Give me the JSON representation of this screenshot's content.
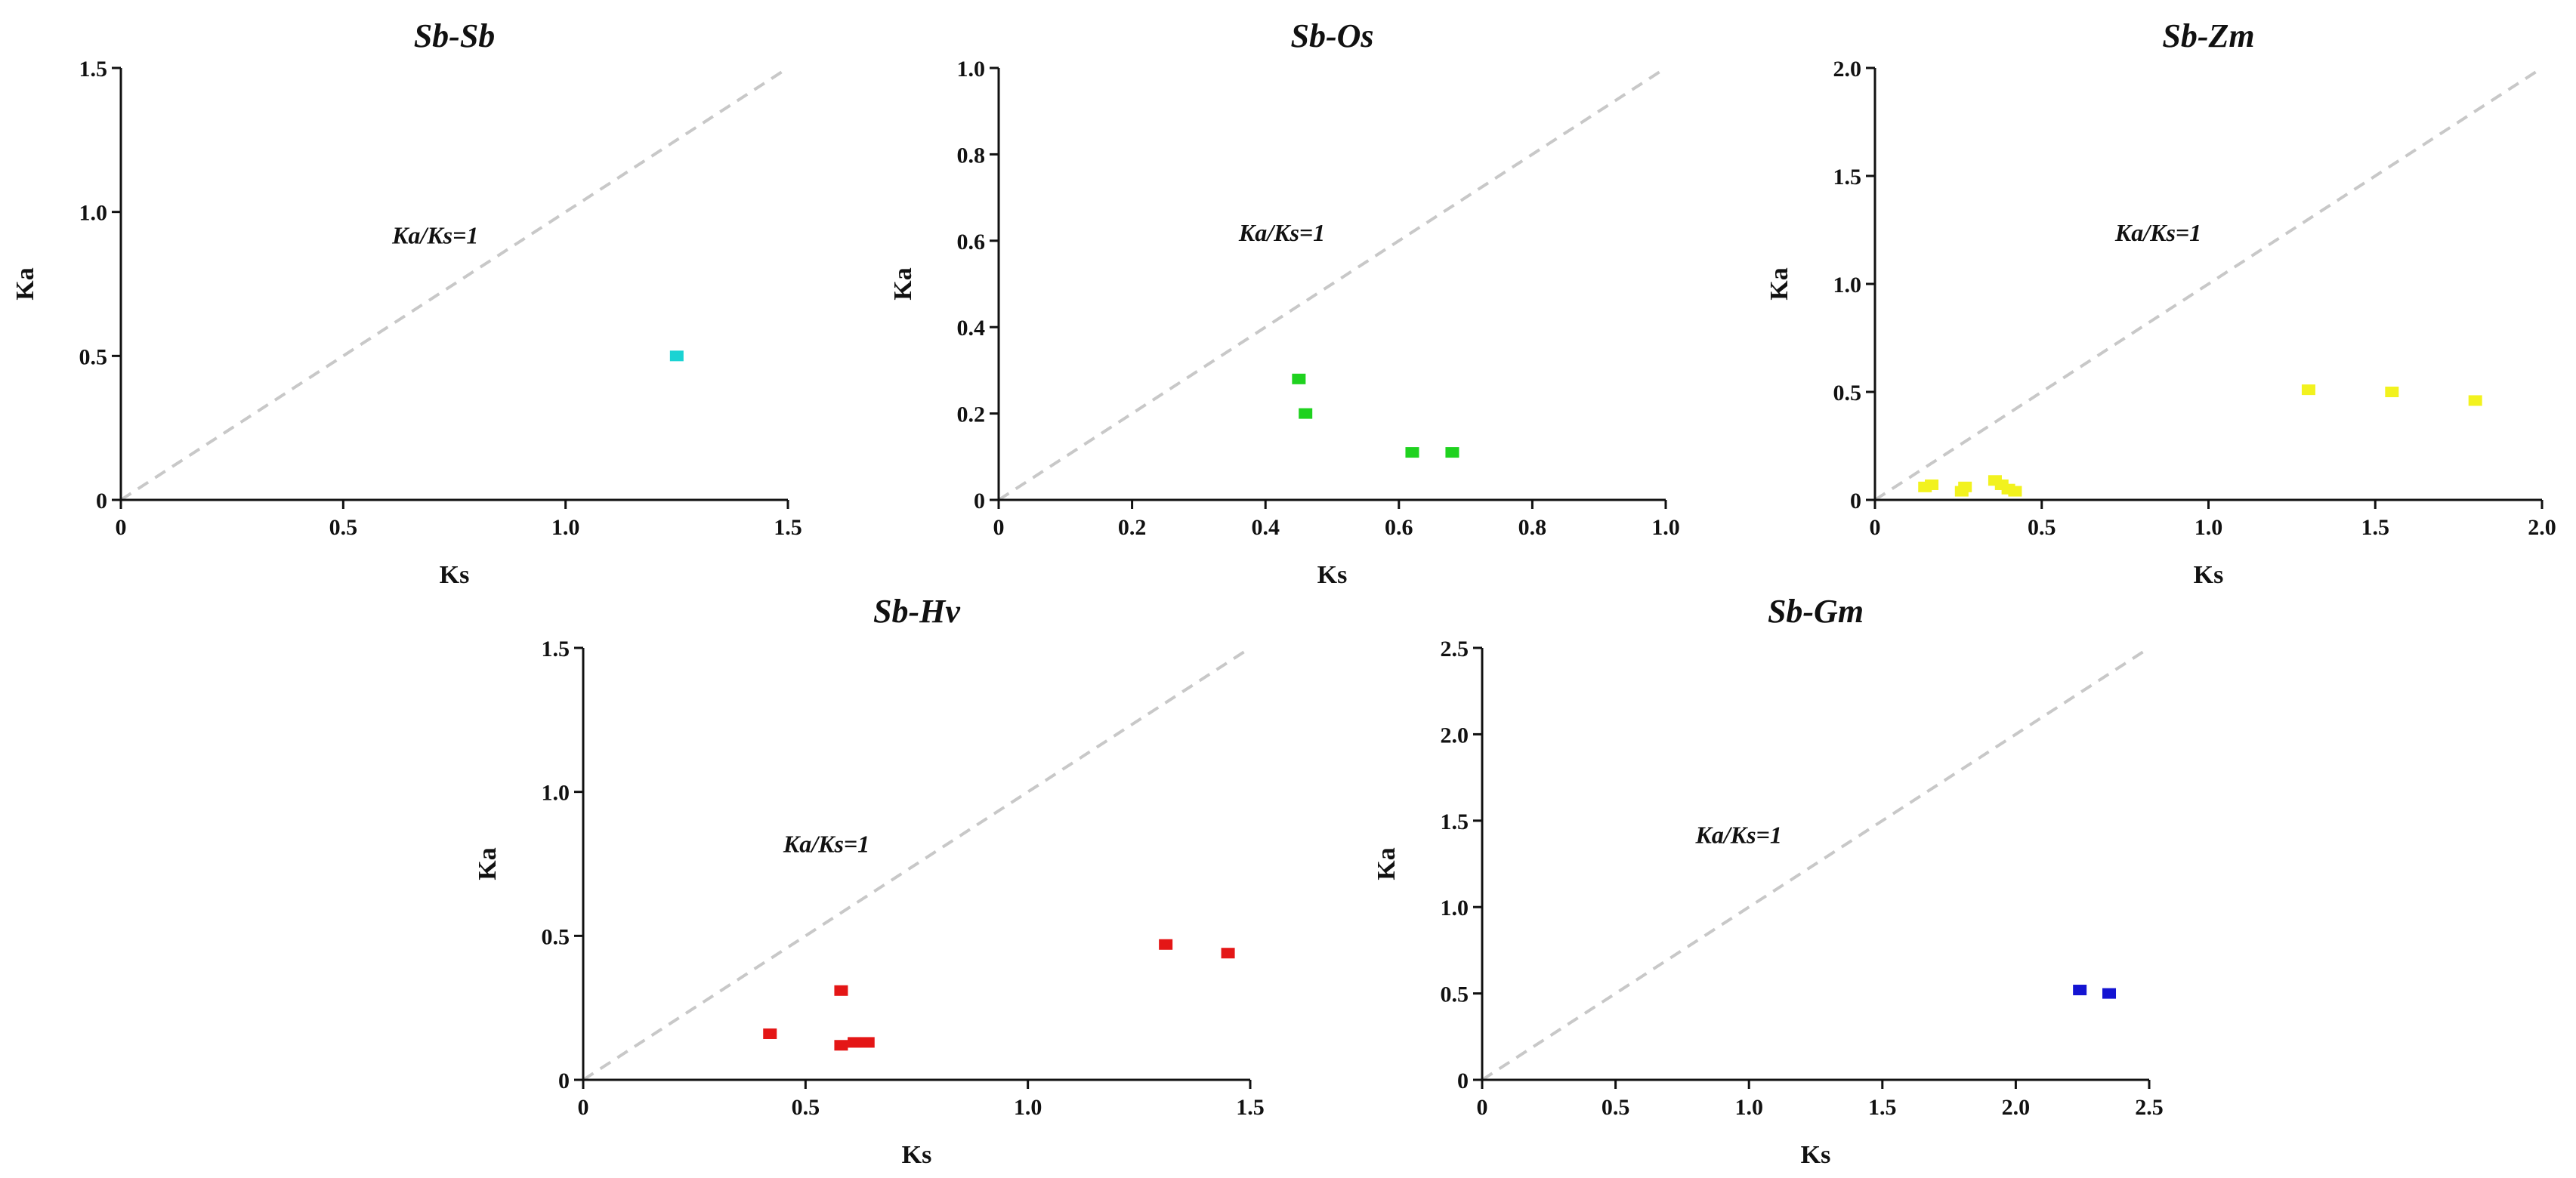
{
  "figure": {
    "background": "#ffffff",
    "reference_line_color": "#c8c8c8"
  },
  "chart_data": [
    {
      "type": "scatter",
      "title": "Sb-Sb",
      "xlabel": "Ks",
      "ylabel": "Ka",
      "xlim": [
        0,
        1.5
      ],
      "ylim": [
        0,
        1.5
      ],
      "xticks": [
        0,
        0.5,
        1.0,
        1.5
      ],
      "yticks": [
        0,
        0.5,
        1.0,
        1.5
      ],
      "xtick_labels": [
        "0",
        "0.5",
        "1.0",
        "1.5"
      ],
      "ytick_labels": [
        "0",
        "0.5",
        "1.0",
        "1.5"
      ],
      "reference_line": {
        "label": "Ka/Ks=1",
        "slope": 1,
        "style": "dashed",
        "label_at": [
          0.61,
          0.89
        ]
      },
      "series": [
        {
          "name": "Sb-Sb",
          "color": "#1ad3d3",
          "points": [
            [
              1.25,
              0.5
            ]
          ]
        }
      ]
    },
    {
      "type": "scatter",
      "title": "Sb-Os",
      "xlabel": "Ks",
      "ylabel": "Ka",
      "xlim": [
        0,
        1.0
      ],
      "ylim": [
        0,
        1.0
      ],
      "xticks": [
        0,
        0.2,
        0.4,
        0.6,
        0.8,
        1.0
      ],
      "yticks": [
        0,
        0.2,
        0.4,
        0.6,
        0.8,
        1.0
      ],
      "xtick_labels": [
        "0",
        "0.2",
        "0.4",
        "0.6",
        "0.8",
        "1.0"
      ],
      "ytick_labels": [
        "0",
        "0.2",
        "0.4",
        "0.6",
        "0.8",
        "1.0"
      ],
      "reference_line": {
        "label": "Ka/Ks=1",
        "slope": 1,
        "style": "dashed",
        "label_at": [
          0.36,
          0.6
        ]
      },
      "series": [
        {
          "name": "Sb-Os",
          "color": "#1fd21f",
          "points": [
            [
              0.45,
              0.28
            ],
            [
              0.46,
              0.2
            ],
            [
              0.62,
              0.11
            ],
            [
              0.68,
              0.11
            ]
          ]
        }
      ]
    },
    {
      "type": "scatter",
      "title": "Sb-Zm",
      "xlabel": "Ks",
      "ylabel": "Ka",
      "xlim": [
        0,
        2.0
      ],
      "ylim": [
        0,
        2.0
      ],
      "xticks": [
        0,
        0.5,
        1.0,
        1.5,
        2.0
      ],
      "yticks": [
        0,
        0.5,
        1.0,
        1.5,
        2.0
      ],
      "xtick_labels": [
        "0",
        "0.5",
        "1.0",
        "1.5",
        "2.0"
      ],
      "ytick_labels": [
        "0",
        "0.5",
        "1.0",
        "1.5",
        "2.0"
      ],
      "reference_line": {
        "label": "Ka/Ks=1",
        "slope": 1,
        "style": "dashed",
        "label_at": [
          0.72,
          1.2
        ]
      },
      "series": [
        {
          "name": "Sb-Zm",
          "color": "#f2f21e",
          "points": [
            [
              0.15,
              0.06
            ],
            [
              0.17,
              0.07
            ],
            [
              0.26,
              0.04
            ],
            [
              0.27,
              0.06
            ],
            [
              0.36,
              0.09
            ],
            [
              0.38,
              0.07
            ],
            [
              0.4,
              0.05
            ],
            [
              0.42,
              0.04
            ],
            [
              1.3,
              0.51
            ],
            [
              1.55,
              0.5
            ],
            [
              1.8,
              0.46
            ]
          ]
        }
      ]
    },
    {
      "type": "scatter",
      "title": "Sb-Hv",
      "xlabel": "Ks",
      "ylabel": "Ka",
      "xlim": [
        0,
        1.5
      ],
      "ylim": [
        0,
        1.5
      ],
      "xticks": [
        0,
        0.5,
        1.0,
        1.5
      ],
      "yticks": [
        0,
        0.5,
        1.0,
        1.5
      ],
      "xtick_labels": [
        "0",
        "0.5",
        "1.0",
        "1.5"
      ],
      "ytick_labels": [
        "0",
        "0.5",
        "1.0",
        "1.5"
      ],
      "reference_line": {
        "label": "Ka/Ks=1",
        "slope": 1,
        "style": "dashed",
        "label_at": [
          0.45,
          0.79
        ]
      },
      "series": [
        {
          "name": "Sb-Hv",
          "color": "#e41616",
          "points": [
            [
              0.42,
              0.16
            ],
            [
              0.58,
              0.12
            ],
            [
              0.58,
              0.31
            ],
            [
              0.61,
              0.13
            ],
            [
              0.64,
              0.13
            ],
            [
              1.31,
              0.47
            ],
            [
              1.45,
              0.44
            ]
          ]
        }
      ]
    },
    {
      "type": "scatter",
      "title": "Sb-Gm",
      "xlabel": "Ks",
      "ylabel": "Ka",
      "xlim": [
        0,
        2.5
      ],
      "ylim": [
        0,
        2.5
      ],
      "xticks": [
        0,
        0.5,
        1.0,
        1.5,
        2.0,
        2.5
      ],
      "yticks": [
        0,
        0.5,
        1.0,
        1.5,
        2.0,
        2.5
      ],
      "xtick_labels": [
        "0",
        "0.5",
        "1.0",
        "1.5",
        "2.0",
        "2.5"
      ],
      "ytick_labels": [
        "0",
        "0.5",
        "1.0",
        "1.5",
        "2.0",
        "2.5"
      ],
      "reference_line": {
        "label": "Ka/Ks=1",
        "slope": 1,
        "style": "dashed",
        "label_at": [
          0.8,
          1.37
        ]
      },
      "series": [
        {
          "name": "Sb-Gm",
          "color": "#1414d2",
          "points": [
            [
              2.24,
              0.52
            ],
            [
              2.35,
              0.5
            ]
          ]
        }
      ]
    }
  ]
}
